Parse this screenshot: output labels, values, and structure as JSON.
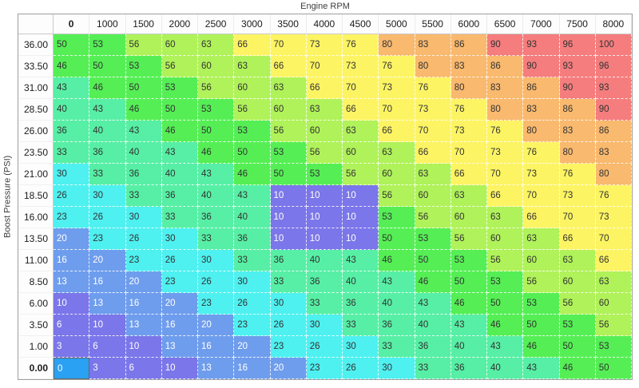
{
  "axis": {
    "x_label": "Engine RPM",
    "y_label": "Boost Pressure (PSI)"
  },
  "table": {
    "col_headers": [
      "0",
      "1000",
      "1500",
      "2000",
      "2500",
      "3000",
      "3500",
      "4000",
      "4500",
      "5000",
      "5500",
      "6000",
      "6500",
      "7000",
      "7500",
      "8000"
    ],
    "row_headers": [
      "36.00",
      "33.50",
      "31.00",
      "28.50",
      "26.00",
      "23.50",
      "21.00",
      "18.50",
      "16.00",
      "13.50",
      "11.00",
      "8.50",
      "6.00",
      "3.50",
      "1.00",
      "0.00"
    ],
    "rows": [
      [
        50,
        53,
        56,
        60,
        63,
        66,
        70,
        73,
        76,
        80,
        83,
        86,
        90,
        93,
        96,
        100
      ],
      [
        46,
        50,
        53,
        56,
        60,
        63,
        66,
        70,
        73,
        76,
        80,
        83,
        86,
        90,
        93,
        96
      ],
      [
        43,
        46,
        50,
        53,
        56,
        60,
        63,
        66,
        70,
        73,
        76,
        80,
        83,
        86,
        90,
        93
      ],
      [
        40,
        43,
        46,
        50,
        53,
        56,
        60,
        63,
        66,
        70,
        73,
        76,
        80,
        83,
        86,
        90
      ],
      [
        36,
        40,
        43,
        46,
        50,
        53,
        56,
        60,
        63,
        66,
        70,
        73,
        76,
        80,
        83,
        86
      ],
      [
        33,
        36,
        40,
        43,
        46,
        50,
        53,
        56,
        60,
        63,
        66,
        70,
        73,
        76,
        80,
        83
      ],
      [
        30,
        33,
        36,
        40,
        43,
        46,
        50,
        53,
        56,
        60,
        63,
        66,
        70,
        73,
        76,
        80
      ],
      [
        26,
        30,
        33,
        36,
        40,
        43,
        10,
        10,
        10,
        56,
        60,
        63,
        66,
        70,
        73,
        76
      ],
      [
        23,
        26,
        30,
        33,
        36,
        40,
        10,
        10,
        10,
        53,
        56,
        60,
        63,
        66,
        70,
        73
      ],
      [
        20,
        23,
        26,
        30,
        33,
        36,
        10,
        10,
        10,
        50,
        53,
        56,
        60,
        63,
        66,
        70
      ],
      [
        16,
        20,
        23,
        26,
        30,
        33,
        36,
        40,
        43,
        46,
        50,
        53,
        56,
        60,
        63,
        66
      ],
      [
        13,
        16,
        20,
        23,
        26,
        30,
        33,
        36,
        40,
        43,
        46,
        50,
        53,
        56,
        60,
        63
      ],
      [
        10,
        13,
        16,
        20,
        23,
        26,
        30,
        33,
        36,
        40,
        43,
        46,
        50,
        53,
        56,
        60
      ],
      [
        6,
        10,
        13,
        16,
        20,
        23,
        26,
        30,
        33,
        36,
        40,
        43,
        46,
        50,
        53,
        56
      ],
      [
        3,
        6,
        10,
        13,
        16,
        20,
        23,
        26,
        30,
        33,
        36,
        40,
        43,
        46,
        50,
        53
      ],
      [
        0,
        3,
        6,
        10,
        13,
        16,
        20,
        23,
        26,
        30,
        33,
        36,
        40,
        43,
        46,
        50
      ]
    ],
    "selected_cell": {
      "row_index": 15,
      "col_index": 0,
      "value": 0,
      "row_label": "0.00",
      "col_label": "0"
    }
  },
  "heatmap": {
    "bins": [
      {
        "max": 12,
        "bg": "#7B76E9",
        "fg": "#FFFFFF"
      },
      {
        "max": 22,
        "bg": "#6F9DED",
        "fg": "#FFFFFF"
      },
      {
        "max": 32,
        "bg": "#4FF0F0",
        "fg": "#333333"
      },
      {
        "max": 45,
        "bg": "#57EFA5",
        "fg": "#333333"
      },
      {
        "max": 55,
        "bg": "#55EF55",
        "fg": "#333333"
      },
      {
        "max": 65,
        "bg": "#B0F25A",
        "fg": "#333333"
      },
      {
        "max": 78,
        "bg": "#FDF464",
        "fg": "#333333"
      },
      {
        "max": 88,
        "bg": "#F9B96E",
        "fg": "#333333"
      },
      {
        "max": 1000,
        "bg": "#F57D7D",
        "fg": "#333333"
      }
    ],
    "selected_bg": "#2AA1F2",
    "selected_fg": "#FFFFFF",
    "selected_border": "#666666"
  }
}
